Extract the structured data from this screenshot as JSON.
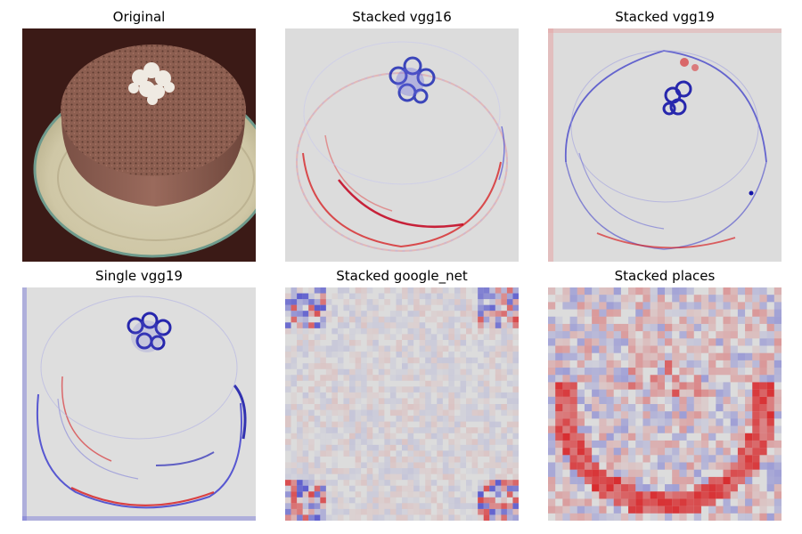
{
  "figure": {
    "panels": [
      {
        "title": "Original",
        "kind": "photo"
      },
      {
        "title": "Stacked vgg16",
        "kind": "saliency"
      },
      {
        "title": "Stacked vgg19",
        "kind": "saliency"
      },
      {
        "title": "Single vgg19",
        "kind": "saliency"
      },
      {
        "title": "Stacked google_net",
        "kind": "saliency-blocky"
      },
      {
        "title": "Stacked places",
        "kind": "saliency-blocky"
      }
    ]
  },
  "colors": {
    "positive": "#d7191c",
    "negative": "#2b2bc8",
    "neutral": "#dcdcdc",
    "table": "#3a1c18"
  }
}
